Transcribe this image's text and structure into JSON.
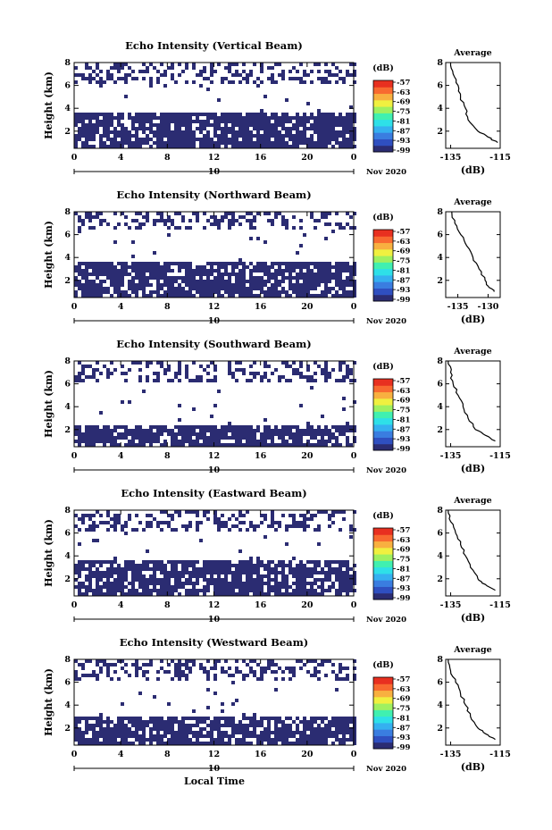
{
  "figure": {
    "xlabel": "Local Time",
    "date_label": "Nov 2020",
    "day_label": "10",
    "colorbar_unit": "(dB)",
    "colorbar_ticks": [
      "-57",
      "-63",
      "-69",
      "-75",
      "-81",
      "-87",
      "-93",
      "-99"
    ],
    "avg_title": "Average",
    "avg_xlabel": "(dB)",
    "ylabel": "Height (km)"
  },
  "chart_data": [
    {
      "type": "heatmap",
      "title": "Echo Intensity (Vertical Beam)",
      "ylabel": "Height (km)",
      "xlabel": "Local Time",
      "x_ticks": [
        "0",
        "4",
        "8",
        "12",
        "16",
        "20",
        "0"
      ],
      "y_ticks": [
        "2",
        "4",
        "6",
        "8"
      ],
      "xlim": [
        0,
        24
      ],
      "ylim": [
        0.5,
        8
      ],
      "color_range_db": [
        -99,
        -57
      ],
      "echo_layers_km": [
        {
          "from": 0.5,
          "to": 3.5
        },
        {
          "from": 6.0,
          "to": 8.0
        }
      ],
      "average_profile": {
        "type": "line",
        "title": "Average",
        "xlabel": "(dB)",
        "x_ticks": [
          "-135",
          "-115"
        ],
        "y_ticks": [
          "2",
          "4",
          "6",
          "8"
        ],
        "xlim": [
          -137,
          -115
        ],
        "ylim": [
          0.5,
          8
        ],
        "height_km": [
          8,
          7,
          6,
          5,
          4,
          3,
          2,
          1.5,
          1
        ],
        "value_db": [
          -135,
          -134,
          -132,
          -131,
          -129,
          -128,
          -124,
          -120,
          -116
        ]
      }
    },
    {
      "type": "heatmap",
      "title": "Echo Intensity (Northward Beam)",
      "ylabel": "Height (km)",
      "xlabel": "Local Time",
      "x_ticks": [
        "0",
        "4",
        "8",
        "12",
        "16",
        "20",
        "0"
      ],
      "y_ticks": [
        "2",
        "4",
        "6",
        "8"
      ],
      "xlim": [
        0,
        24
      ],
      "ylim": [
        0.5,
        8
      ],
      "color_range_db": [
        -99,
        -57
      ],
      "echo_layers_km": [
        {
          "from": 0.5,
          "to": 3.5
        },
        {
          "from": 6.5,
          "to": 8.0
        }
      ],
      "average_profile": {
        "type": "line",
        "title": "Average",
        "xlabel": "(dB)",
        "x_ticks": [
          "-135",
          "-130"
        ],
        "y_ticks": [
          "2",
          "4",
          "6",
          "8"
        ],
        "xlim": [
          -137,
          -128
        ],
        "ylim": [
          0.5,
          8
        ],
        "height_km": [
          8,
          7,
          6,
          5,
          4,
          3,
          2,
          1.5,
          1
        ],
        "value_db": [
          -136,
          -135.5,
          -134.5,
          -133.5,
          -132.5,
          -131.5,
          -130.5,
          -130,
          -129
        ]
      }
    },
    {
      "type": "heatmap",
      "title": "Echo Intensity (Southward Beam)",
      "ylabel": "Height (km)",
      "xlabel": "Local Time",
      "x_ticks": [
        "0",
        "4",
        "8",
        "12",
        "16",
        "20",
        "0"
      ],
      "y_ticks": [
        "2",
        "4",
        "6",
        "8"
      ],
      "xlim": [
        0,
        24
      ],
      "ylim": [
        0.5,
        8
      ],
      "color_range_db": [
        -99,
        -57
      ],
      "echo_layers_km": [
        {
          "from": 0.5,
          "to": 2.5
        },
        {
          "from": 6.0,
          "to": 8.0
        }
      ],
      "average_profile": {
        "type": "line",
        "title": "Average",
        "xlabel": "(dB)",
        "x_ticks": [
          "-135",
          "-115"
        ],
        "y_ticks": [
          "2",
          "4",
          "6",
          "8"
        ],
        "xlim": [
          -137,
          -115
        ],
        "ylim": [
          0.5,
          8
        ],
        "height_km": [
          8,
          7,
          6,
          5,
          4,
          3,
          2,
          1.5,
          1
        ],
        "value_db": [
          -136,
          -135,
          -134,
          -132,
          -130,
          -128,
          -125,
          -121,
          -117
        ]
      }
    },
    {
      "type": "heatmap",
      "title": "Echo Intensity (Eastward Beam)",
      "ylabel": "Height (km)",
      "xlabel": "Local Time",
      "x_ticks": [
        "0",
        "4",
        "8",
        "12",
        "16",
        "20",
        "0"
      ],
      "y_ticks": [
        "2",
        "4",
        "6",
        "8"
      ],
      "xlim": [
        0,
        24
      ],
      "ylim": [
        0.5,
        8
      ],
      "color_range_db": [
        -99,
        -57
      ],
      "echo_layers_km": [
        {
          "from": 0.5,
          "to": 3.5
        },
        {
          "from": 6.0,
          "to": 8.0
        }
      ],
      "average_profile": {
        "type": "line",
        "title": "Average",
        "xlabel": "(dB)",
        "x_ticks": [
          "-135",
          "-115"
        ],
        "y_ticks": [
          "2",
          "4",
          "6",
          "8"
        ],
        "xlim": [
          -137,
          -115
        ],
        "ylim": [
          0.5,
          8
        ],
        "height_km": [
          8,
          7,
          6,
          5,
          4,
          3,
          2,
          1.5,
          1
        ],
        "value_db": [
          -136,
          -135,
          -133,
          -131,
          -129,
          -127,
          -124,
          -121,
          -117
        ]
      }
    },
    {
      "type": "heatmap",
      "title": "Echo Intensity (Westward Beam)",
      "ylabel": "Height (km)",
      "xlabel": "Local Time",
      "x_ticks": [
        "0",
        "4",
        "8",
        "12",
        "16",
        "20",
        "0"
      ],
      "y_ticks": [
        "2",
        "4",
        "6",
        "8"
      ],
      "xlim": [
        0,
        24
      ],
      "ylim": [
        0.5,
        8
      ],
      "color_range_db": [
        -99,
        -57
      ],
      "echo_layers_km": [
        {
          "from": 0.5,
          "to": 3.0
        },
        {
          "from": 6.0,
          "to": 8.0
        }
      ],
      "average_profile": {
        "type": "line",
        "title": "Average",
        "xlabel": "(dB)",
        "x_ticks": [
          "-135",
          "-115"
        ],
        "y_ticks": [
          "2",
          "4",
          "6",
          "8"
        ],
        "xlim": [
          -137,
          -115
        ],
        "ylim": [
          0.5,
          8
        ],
        "height_km": [
          8,
          7,
          6,
          5,
          4,
          3,
          2,
          1.5,
          1
        ],
        "value_db": [
          -136,
          -135,
          -133,
          -131,
          -129,
          -127,
          -124,
          -121,
          -117
        ]
      }
    }
  ],
  "colors": {
    "echo": "#2b2c72",
    "colorbar": [
      "#2b2c72",
      "#2f4fc0",
      "#3a7de0",
      "#35b0f0",
      "#2ee0e8",
      "#40f0b0",
      "#9ff060",
      "#f0f040",
      "#f8b040",
      "#f86a30",
      "#e83020"
    ]
  }
}
